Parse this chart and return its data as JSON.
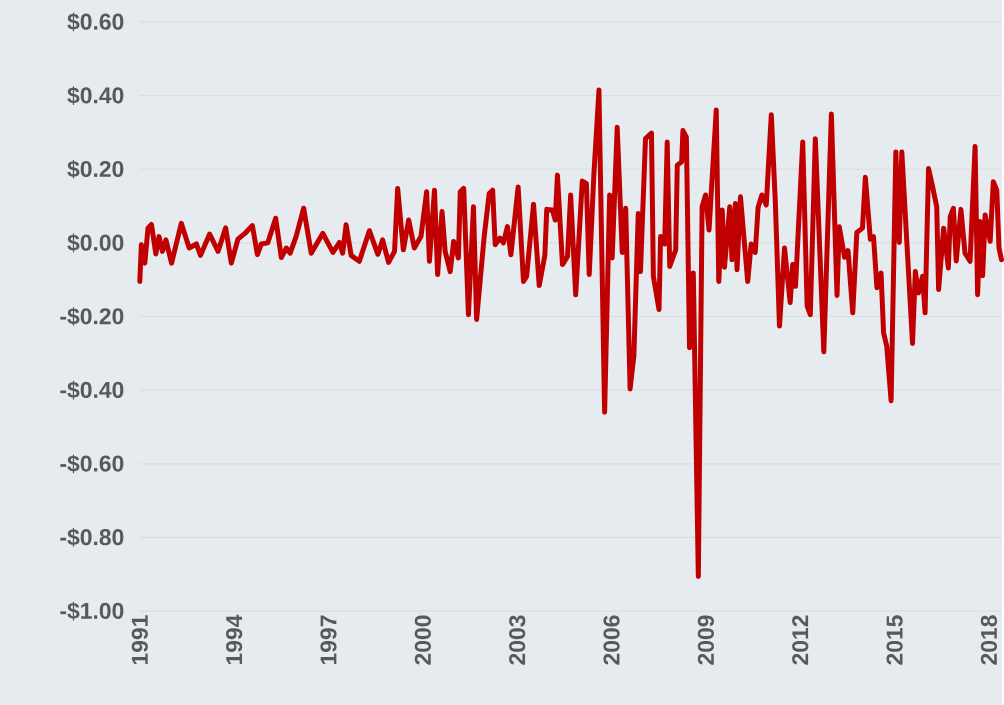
{
  "chart_data": {
    "type": "line",
    "color": "#c00000",
    "grid": "y",
    "xlim": [
      1991,
      2018.4
    ],
    "ylim": [
      -1.0,
      0.6
    ],
    "xticks": [
      1991,
      1994,
      1997,
      2000,
      2003,
      2006,
      2009,
      2012,
      2015,
      2018
    ],
    "yticks": [
      {
        "value": -1.0,
        "label": "-$1.00"
      },
      {
        "value": -0.8,
        "label": "-$0.80"
      },
      {
        "value": -0.6,
        "label": "-$0.60"
      },
      {
        "value": -0.4,
        "label": "-$0.40"
      },
      {
        "value": -0.2,
        "label": "-$0.20"
      },
      {
        "value": 0.0,
        "label": "$0.00"
      },
      {
        "value": 0.2,
        "label": "$0.20"
      },
      {
        "value": 0.4,
        "label": "$0.40"
      },
      {
        "value": 0.6,
        "label": "$0.60"
      }
    ],
    "x": [
      1991.0,
      1991.05,
      1991.16,
      1991.26,
      1991.37,
      1991.51,
      1991.61,
      1991.72,
      1991.83,
      1992.01,
      1992.32,
      1992.57,
      1992.8,
      1992.93,
      1993.22,
      1993.49,
      1993.73,
      1993.91,
      1994.12,
      1994.37,
      1994.58,
      1994.74,
      1994.86,
      1995.07,
      1995.32,
      1995.5,
      1995.66,
      1995.78,
      1995.97,
      1996.21,
      1996.45,
      1996.82,
      1997.14,
      1997.35,
      1997.45,
      1997.56,
      1997.72,
      1997.98,
      1998.3,
      1998.57,
      1998.72,
      1998.91,
      1999.1,
      1999.2,
      1999.38,
      1999.55,
      1999.73,
      1999.94,
      2000.12,
      2000.21,
      2000.37,
      2000.47,
      2000.61,
      2000.71,
      2000.87,
      2000.98,
      2001.13,
      2001.19,
      2001.3,
      2001.45,
      2001.61,
      2001.71,
      2001.95,
      2002.11,
      2002.22,
      2002.3,
      2002.45,
      2002.56,
      2002.69,
      2002.8,
      2003.03,
      2003.2,
      2003.3,
      2003.52,
      2003.7,
      2003.88,
      2003.94,
      2004.12,
      2004.21,
      2004.28,
      2004.44,
      2004.6,
      2004.7,
      2004.86,
      2005.07,
      2005.2,
      2005.29,
      2005.44,
      2005.6,
      2005.78,
      2005.94,
      2006.02,
      2006.18,
      2006.34,
      2006.45,
      2006.59,
      2006.71,
      2006.85,
      2006.92,
      2007.08,
      2007.27,
      2007.33,
      2007.51,
      2007.56,
      2007.69,
      2007.77,
      2007.85,
      2008.04,
      2008.09,
      2008.23,
      2008.27,
      2008.38,
      2008.48,
      2008.6,
      2008.76,
      2008.88,
      2008.99,
      2009.1,
      2009.33,
      2009.41,
      2009.52,
      2009.59,
      2009.76,
      2009.83,
      2009.94,
      2009.99,
      2010.1,
      2010.33,
      2010.44,
      2010.57,
      2010.66,
      2010.78,
      2010.92,
      2011.08,
      2011.21,
      2011.34,
      2011.5,
      2011.68,
      2011.76,
      2011.85,
      2012.08,
      2012.22,
      2012.32,
      2012.48,
      2012.75,
      2012.99,
      2013.17,
      2013.24,
      2013.41,
      2013.52,
      2013.67,
      2013.8,
      2013.98,
      2014.07,
      2014.23,
      2014.33,
      2014.44,
      2014.57,
      2014.65,
      2014.75,
      2014.89,
      2015.04,
      2015.15,
      2015.23,
      2015.57,
      2015.66,
      2015.76,
      2015.89,
      2015.97,
      2016.08,
      2016.21,
      2016.34,
      2016.4,
      2016.56,
      2016.71,
      2016.77,
      2016.87,
      2016.96,
      2017.11,
      2017.24,
      2017.4,
      2017.56,
      2017.64,
      2017.72,
      2017.8,
      2017.88,
      2018.04,
      2018.14,
      2018.25,
      2018.32,
      2018.4
    ],
    "values": [
      -0.105,
      -0.005,
      -0.055,
      0.04,
      0.05,
      -0.03,
      0.017,
      -0.023,
      0.008,
      -0.055,
      0.053,
      -0.014,
      -0.003,
      -0.034,
      0.024,
      -0.023,
      0.041,
      -0.055,
      0.01,
      0.028,
      0.047,
      -0.032,
      -0.003,
      0.0,
      0.067,
      -0.04,
      -0.014,
      -0.028,
      0.017,
      0.094,
      -0.028,
      0.026,
      -0.026,
      0.001,
      -0.028,
      0.049,
      -0.034,
      -0.05,
      0.033,
      -0.031,
      0.008,
      -0.053,
      -0.023,
      0.148,
      -0.019,
      0.062,
      -0.014,
      0.017,
      0.139,
      -0.05,
      0.143,
      -0.086,
      0.085,
      -0.023,
      -0.078,
      0.004,
      -0.041,
      0.139,
      0.148,
      -0.195,
      0.098,
      -0.208,
      0.017,
      0.134,
      0.143,
      -0.005,
      0.013,
      0.0,
      0.044,
      -0.032,
      0.152,
      -0.105,
      -0.091,
      0.105,
      -0.116,
      -0.034,
      0.091,
      0.089,
      0.062,
      0.184,
      -0.059,
      -0.037,
      0.13,
      -0.141,
      0.168,
      0.161,
      -0.086,
      0.188,
      0.415,
      -0.46,
      0.13,
      -0.041,
      0.314,
      -0.026,
      0.094,
      -0.397,
      -0.307,
      0.08,
      -0.078,
      0.283,
      0.298,
      -0.091,
      -0.181,
      0.017,
      -0.003,
      0.274,
      -0.064,
      -0.019,
      0.211,
      0.22,
      0.305,
      0.287,
      -0.285,
      -0.082,
      -0.906,
      0.098,
      0.13,
      0.035,
      0.361,
      -0.105,
      0.089,
      -0.066,
      0.098,
      -0.046,
      0.107,
      -0.073,
      0.125,
      -0.105,
      -0.003,
      -0.026,
      0.096,
      0.13,
      0.103,
      0.348,
      0.107,
      -0.226,
      -0.014,
      -0.162,
      -0.059,
      -0.118,
      0.274,
      -0.172,
      -0.195,
      0.283,
      -0.296,
      0.35,
      -0.143,
      0.044,
      -0.039,
      -0.021,
      -0.19,
      0.028,
      0.04,
      0.178,
      0.01,
      0.017,
      -0.122,
      -0.082,
      -0.244,
      -0.28,
      -0.429,
      0.247,
      0.001,
      0.247,
      -0.273,
      -0.078,
      -0.136,
      -0.091,
      -0.19,
      0.202,
      0.152,
      0.098,
      -0.127,
      0.04,
      -0.068,
      0.071,
      0.094,
      -0.049,
      0.091,
      -0.028,
      -0.05,
      0.262,
      -0.141,
      0.058,
      -0.089,
      0.076,
      0.004,
      0.166,
      0.143,
      -0.014,
      -0.046
    ]
  }
}
